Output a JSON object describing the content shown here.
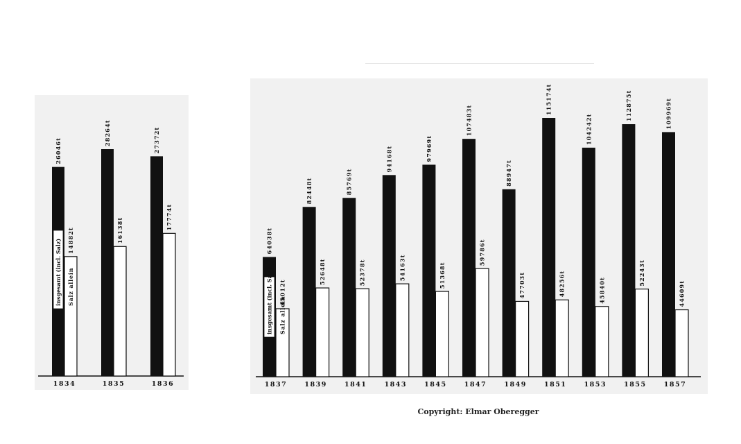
{
  "chart_data": [
    {
      "type": "bar",
      "categories": [
        "1834",
        "1835",
        "1836"
      ],
      "series": [
        {
          "name": "insgesamt (incl. Salz)",
          "values": [
            26046,
            28264,
            27372
          ],
          "labels": [
            "26046t",
            "28264t",
            "27372t"
          ]
        },
        {
          "name": "Salz allein",
          "values": [
            14882,
            16138,
            17774
          ],
          "labels": [
            "14882t",
            "16138t",
            "17774t"
          ]
        }
      ],
      "colors": {
        "total": "#111111",
        "salt": "#ffffff"
      }
    },
    {
      "type": "bar",
      "categories": [
        "1837",
        "1839",
        "1841",
        "1843",
        "1845",
        "1847",
        "1849",
        "1851",
        "1853",
        "1855",
        "1857"
      ],
      "series": [
        {
          "name": "insgesamt (incl. Salz)",
          "values": [
            64038,
            82448,
            85769,
            94168,
            97969,
            107483,
            88947,
            115174,
            104242,
            112875,
            109969
          ],
          "labels": [
            "64038t",
            "82448t",
            "85769t",
            "94168t",
            "97969t",
            "107483t",
            "88947t",
            "115174t",
            "104242t",
            "112875t",
            "109969t"
          ]
        },
        {
          "name": "Salz allein",
          "values": [
            45012,
            52648,
            52378,
            54163,
            51368,
            59786,
            47703,
            48256,
            45840,
            52243,
            44609
          ],
          "labels": [
            "45012t",
            "52648t",
            "52378t",
            "54163t",
            "51368t",
            "59786t",
            "47703t",
            "48256t",
            "45840t",
            "52243t",
            "44609t"
          ]
        }
      ],
      "colors": {
        "total": "#111111",
        "salt": "#ffffff"
      }
    }
  ],
  "copyright": "Copyright: Elmar Oberegger"
}
